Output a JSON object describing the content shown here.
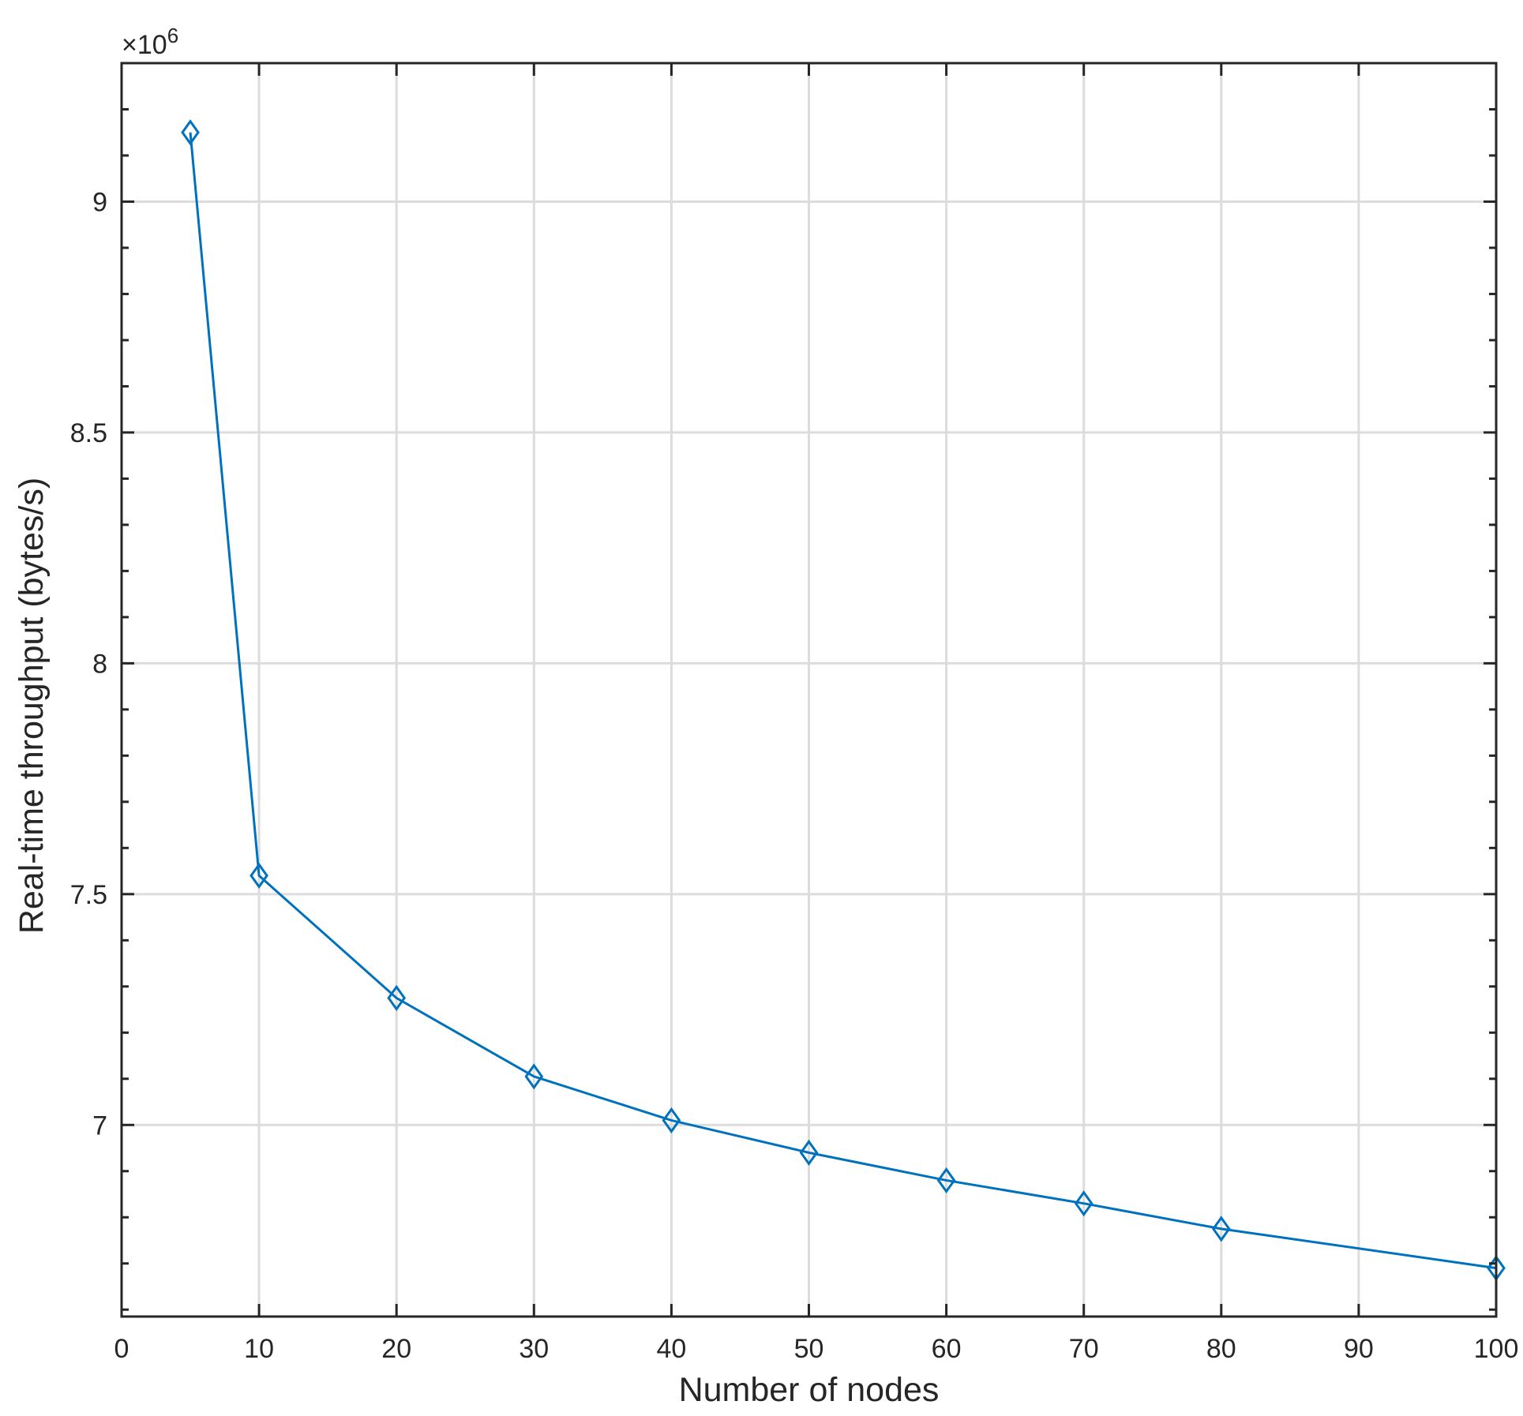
{
  "chart_data": {
    "type": "line",
    "xlabel": "Number of nodes",
    "ylabel": "Real-time throughput (bytes/s)",
    "y_exponent_base": "×10",
    "y_exponent_power": "6",
    "xlim": [
      0,
      100
    ],
    "ylim": [
      6.585,
      9.3
    ],
    "x_ticks": [
      0,
      10,
      20,
      30,
      40,
      50,
      60,
      70,
      80,
      90,
      100
    ],
    "x_tick_labels": [
      "0",
      "10",
      "20",
      "30",
      "40",
      "50",
      "60",
      "70",
      "80",
      "90",
      "100"
    ],
    "y_ticks": [
      7,
      7.5,
      8,
      8.5,
      9
    ],
    "y_tick_labels": [
      "7",
      "7.5",
      "8",
      "8.5",
      "9"
    ],
    "y_minor_step": 0.1,
    "grid": true,
    "series": [
      {
        "color": "#0072BD",
        "marker": "diamond",
        "x": [
          5,
          10,
          20,
          30,
          40,
          50,
          60,
          70,
          80,
          100
        ],
        "y": [
          9.15,
          7.54,
          7.275,
          7.105,
          7.01,
          6.94,
          6.88,
          6.83,
          6.775,
          6.69
        ]
      }
    ]
  },
  "colors": {
    "line": "#0072BD",
    "grid": "#dcdcdc",
    "axes": "#262626",
    "background": "#ffffff"
  }
}
